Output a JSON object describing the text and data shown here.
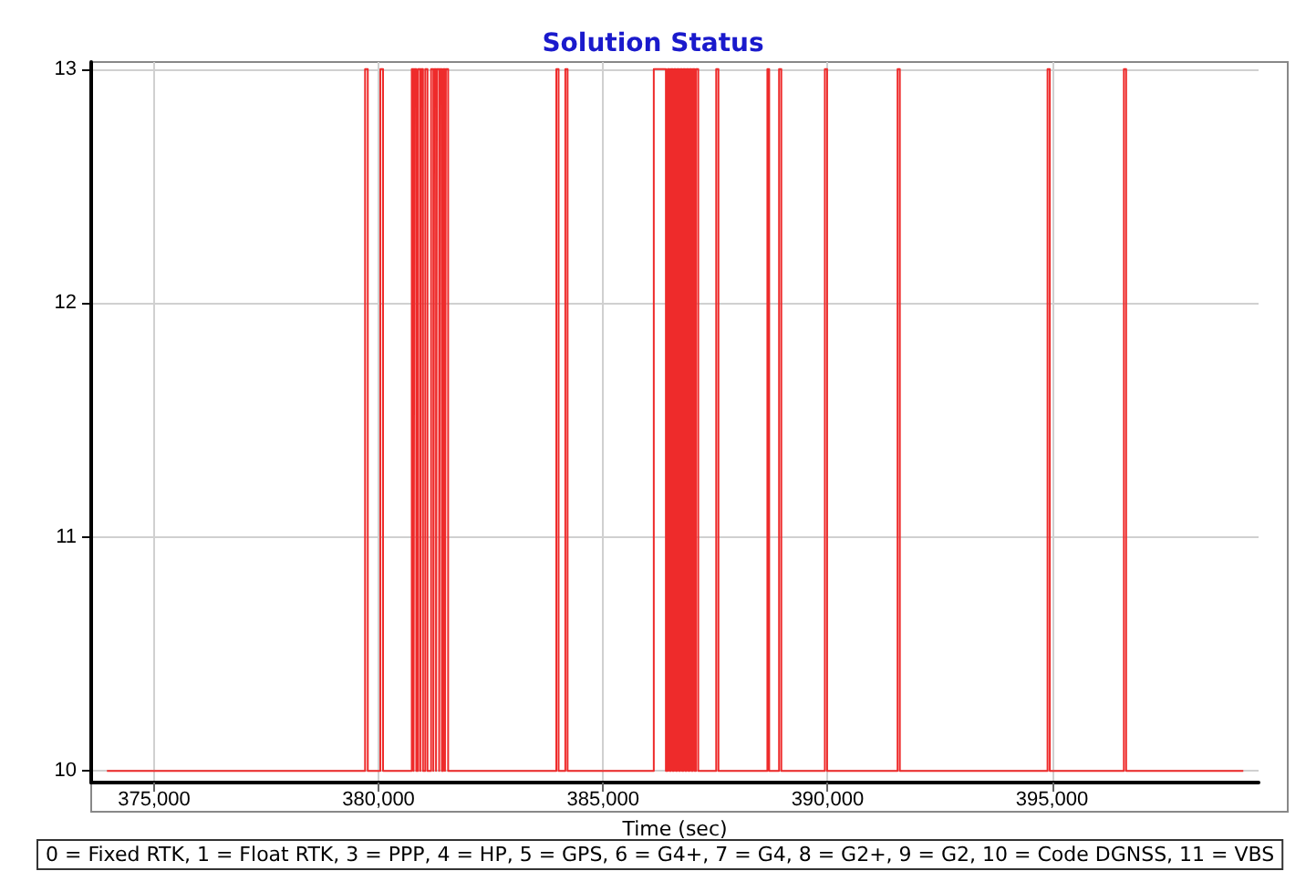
{
  "chart_data": {
    "type": "step",
    "title": "Solution Status",
    "xlabel": "Time (sec)",
    "annotations": [
      "0 = Fixed RTK, 1 = Float RTK, 3 = PPP, 4 = HP, 5 = GPS, 6 = G4+, 7 = G4, 8 = G2+, 9 = G2, 10 = Code DGNSS, 11 = VBS"
    ],
    "x": [
      373950,
      379700,
      379760,
      380040,
      380100,
      380740,
      380780,
      380800,
      380840,
      380880,
      380930,
      380950,
      380990,
      381040,
      381090,
      381170,
      381220,
      381240,
      381280,
      381300,
      381350,
      381370,
      381410,
      381440,
      381480,
      381500,
      381550,
      383960,
      384010,
      384160,
      384210,
      386130,
      386400,
      386440,
      386480,
      386510,
      386550,
      386580,
      386620,
      386650,
      386690,
      386720,
      386760,
      386790,
      386830,
      386860,
      386900,
      386930,
      386970,
      387000,
      387040,
      387070,
      387120,
      387520,
      387570,
      388660,
      388700,
      388920,
      388970,
      389940,
      389990,
      391560,
      391610,
      394900,
      394950,
      396600,
      396650,
      399260
    ],
    "series": [
      {
        "color": "#ee2b2b",
        "values": [
          10,
          13,
          10,
          13,
          10,
          13,
          10,
          13,
          10,
          13,
          10,
          13,
          10,
          13,
          10,
          13,
          10,
          13,
          10,
          13,
          10,
          13,
          10,
          13,
          10,
          13,
          10,
          13,
          10,
          13,
          10,
          13,
          10,
          13,
          10,
          13,
          10,
          13,
          10,
          13,
          10,
          13,
          10,
          13,
          10,
          13,
          10,
          13,
          10,
          13,
          10,
          13,
          10,
          13,
          10,
          13,
          10,
          13,
          10,
          13,
          10,
          13,
          10,
          13,
          10,
          13,
          10,
          10
        ]
      }
    ],
    "xlim": [
      373600,
      399600
    ],
    "xticks": [
      {
        "value": 375000,
        "label": "375,000"
      },
      {
        "value": 380000,
        "label": "380,000"
      },
      {
        "value": 385000,
        "label": "385,000"
      },
      {
        "value": 390000,
        "label": "390,000"
      },
      {
        "value": 395000,
        "label": "395,000"
      }
    ],
    "ylim": [
      9.95,
      13.03
    ],
    "yticks": [
      10,
      11,
      12,
      13
    ],
    "grid": true,
    "marker": "none",
    "line_style": "solid"
  }
}
